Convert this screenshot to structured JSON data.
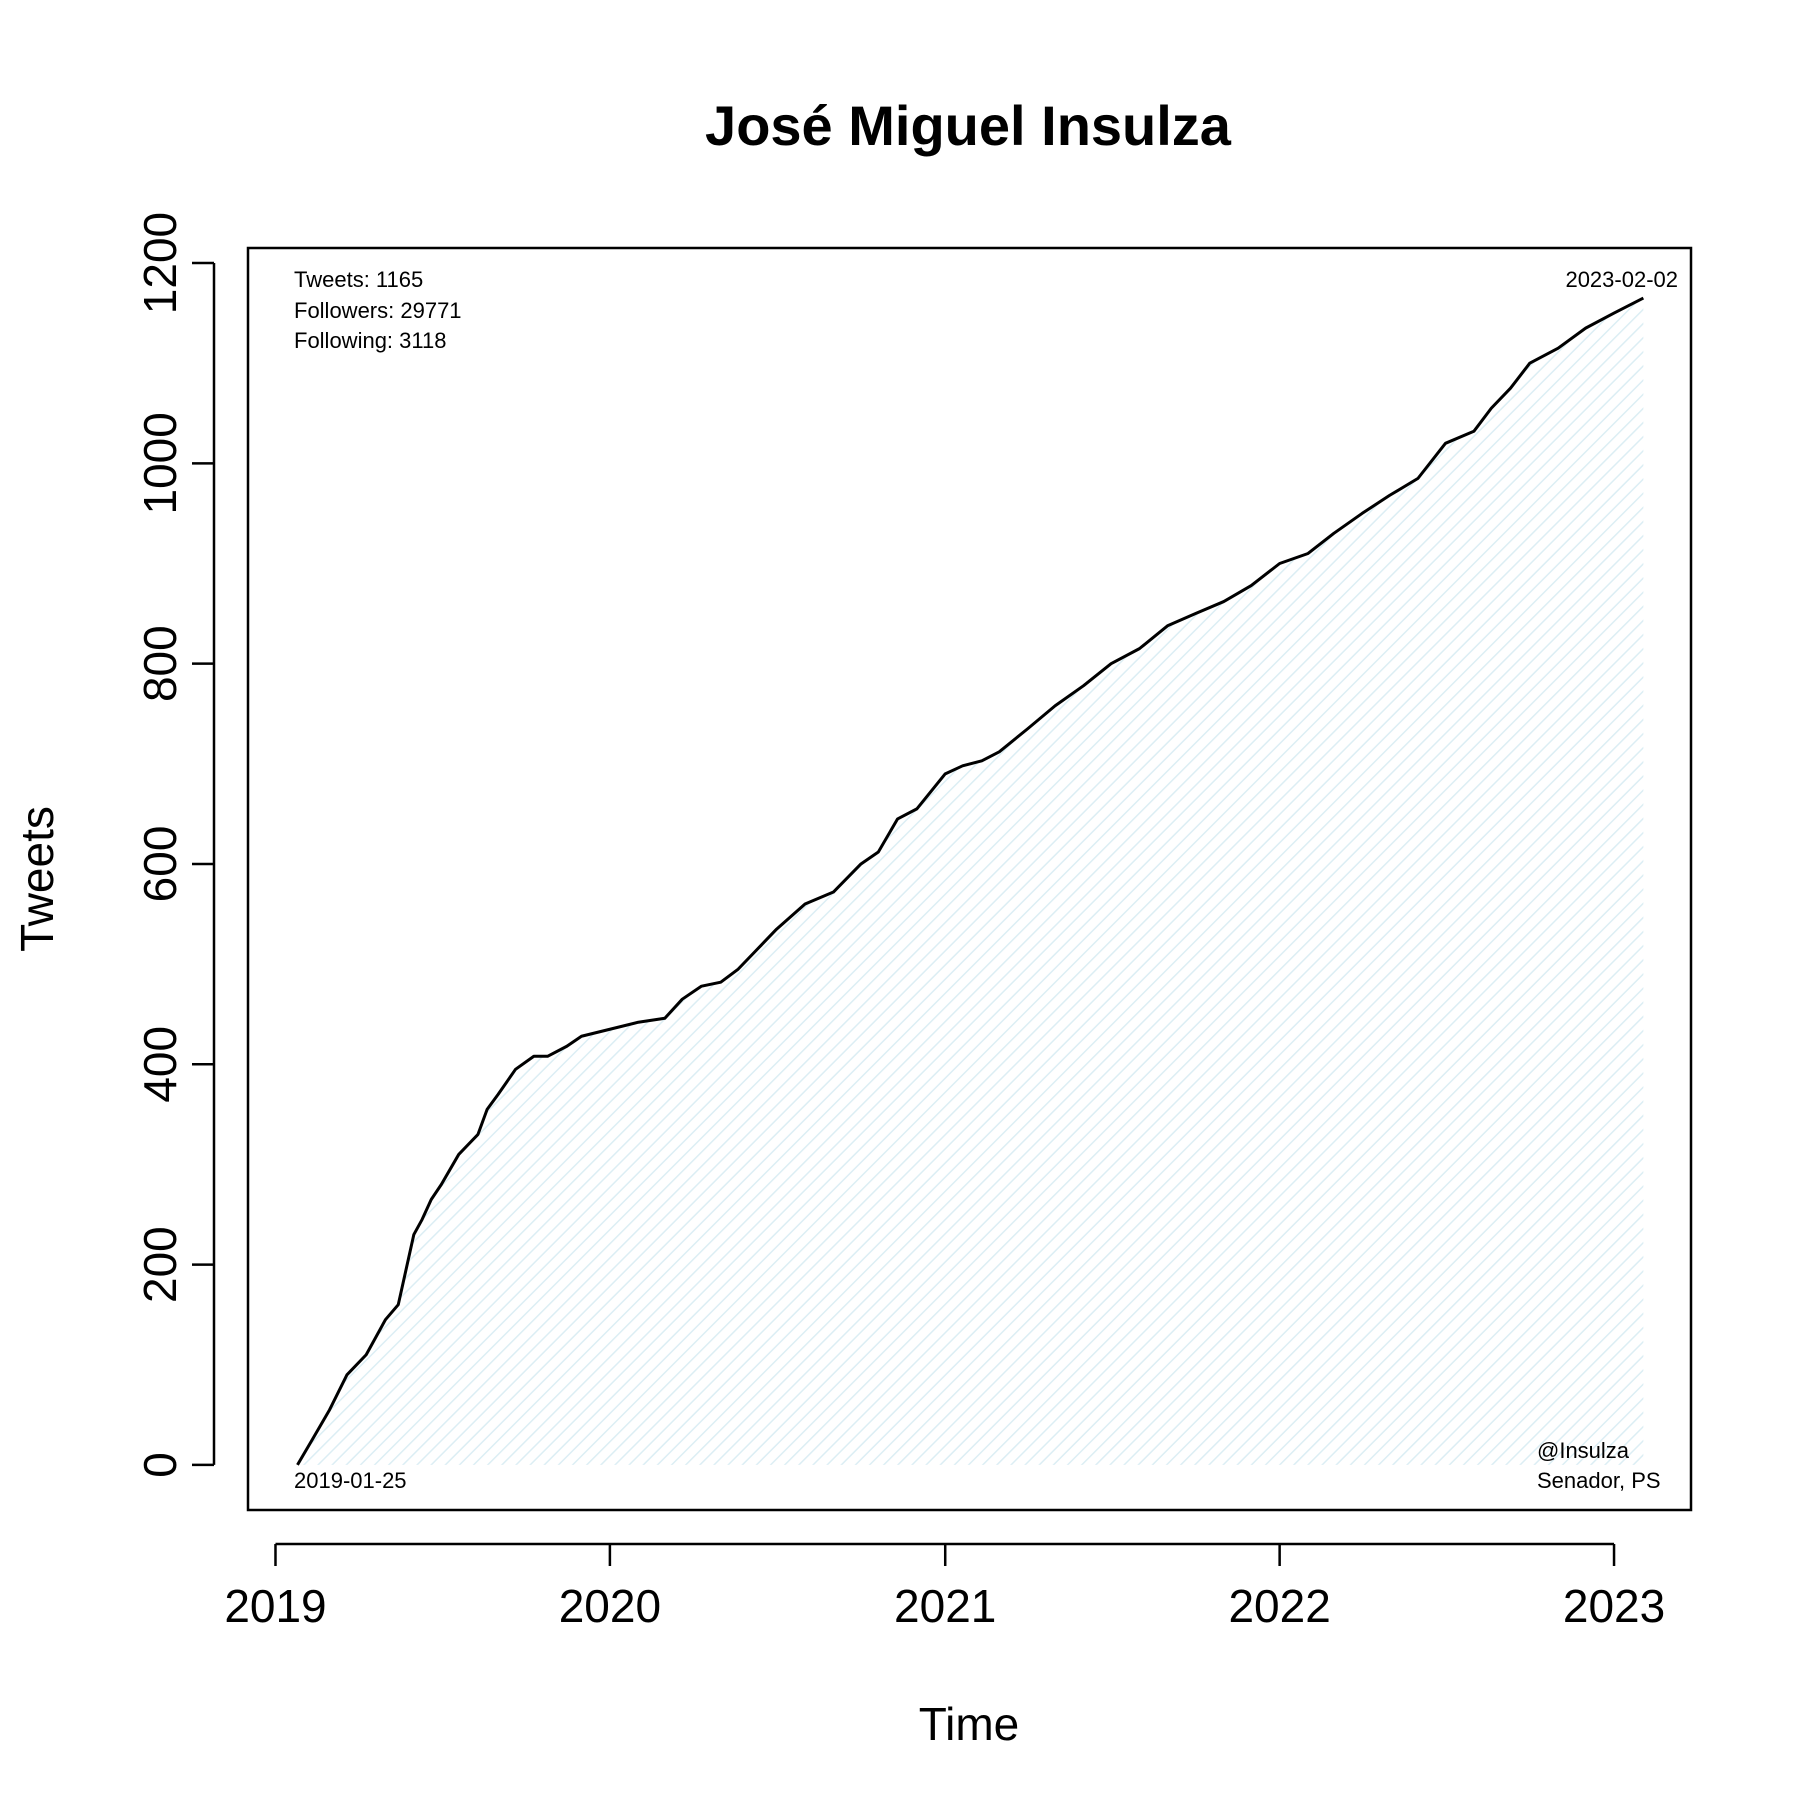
{
  "chart_data": {
    "type": "area",
    "title": "José Miguel Insulza",
    "xlabel": "Time",
    "ylabel": "Tweets",
    "x_ticks": [
      "2019",
      "2020",
      "2021",
      "2022",
      "2023"
    ],
    "y_ticks": [
      0,
      200,
      400,
      600,
      800,
      1000,
      1200
    ],
    "xlim": [
      "2018-12-02",
      "2023-03-26"
    ],
    "ylim": [
      -45,
      1215
    ],
    "grid": false,
    "fill_color": "#e8f4f8",
    "line_color": "#000000",
    "series": [
      {
        "x": [
          "2019-01-25",
          "2019-02-10",
          "2019-03-01",
          "2019-03-20",
          "2019-04-10",
          "2019-05-01",
          "2019-05-15",
          "2019-06-01",
          "2019-06-10",
          "2019-06-20",
          "2019-07-01",
          "2019-07-20",
          "2019-08-10",
          "2019-08-20",
          "2019-09-01",
          "2019-09-20",
          "2019-10-10",
          "2019-10-25",
          "2019-11-15",
          "2019-12-01",
          "2020-01-01",
          "2020-02-01",
          "2020-03-01",
          "2020-03-20",
          "2020-04-10",
          "2020-05-01",
          "2020-05-20",
          "2020-06-10",
          "2020-07-01",
          "2020-08-01",
          "2020-09-01",
          "2020-10-01",
          "2020-10-20",
          "2020-11-10",
          "2020-12-01",
          "2021-01-01",
          "2021-01-20",
          "2021-02-10",
          "2021-03-01",
          "2021-04-01",
          "2021-05-01",
          "2021-06-01",
          "2021-07-01",
          "2021-08-01",
          "2021-09-01",
          "2021-10-01",
          "2021-11-01",
          "2021-12-01",
          "2022-01-01",
          "2022-02-01",
          "2022-03-01",
          "2022-04-01",
          "2022-05-01",
          "2022-06-01",
          "2022-07-01",
          "2022-08-01",
          "2022-08-20",
          "2022-09-10",
          "2022-10-01",
          "2022-11-01",
          "2022-12-01",
          "2023-01-01",
          "2023-02-02"
        ],
        "y": [
          0,
          25,
          55,
          90,
          110,
          145,
          160,
          230,
          245,
          265,
          280,
          310,
          330,
          355,
          370,
          395,
          408,
          408,
          418,
          428,
          435,
          442,
          446,
          465,
          478,
          482,
          495,
          515,
          535,
          560,
          572,
          600,
          612,
          645,
          655,
          690,
          698,
          703,
          712,
          735,
          758,
          778,
          800,
          815,
          838,
          850,
          862,
          878,
          900,
          910,
          930,
          950,
          968,
          985,
          1020,
          1032,
          1055,
          1075,
          1100,
          1115,
          1135,
          1150,
          1165
        ]
      }
    ]
  },
  "annotations": {
    "tweets": "Tweets: 1165",
    "followers": "Followers: 29771",
    "following": "Following: 3118",
    "end_date": "2023-02-02",
    "start_date": "2019-01-25",
    "handle": "@Insulza",
    "role": "Senador, PS"
  }
}
